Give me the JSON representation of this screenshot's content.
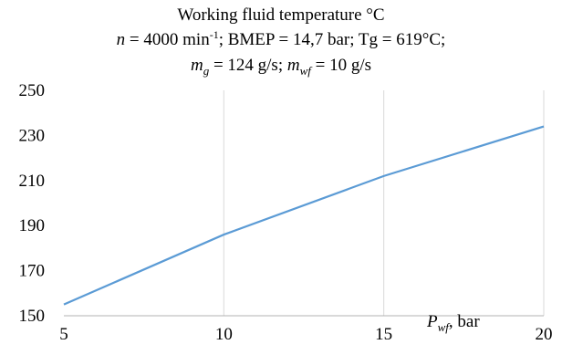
{
  "chart_data": {
    "type": "line",
    "title": "Working fluid temperature °C",
    "subtitle": {
      "n_var": "n",
      "n_eq": " = 4000 min",
      "n_exp": "-1",
      "rest": "; BMEP = 14,7 bar; Tg = 619°C;",
      "mg_var": "m",
      "mg_sub": "g",
      "mg_eq": " = 124 g/s; ",
      "mwf_var": "m",
      "mwf_sub": "wf",
      "mwf_eq": " = 10 g/s"
    },
    "xlabel": {
      "var": "P",
      "sub": "wf",
      "unit": ", bar"
    },
    "ylabel": "",
    "x": [
      5,
      10,
      15,
      20
    ],
    "y": [
      155,
      186,
      212,
      234
    ],
    "xlim": [
      5,
      20
    ],
    "ylim": [
      150,
      250
    ],
    "xticks": [
      "5",
      "10",
      "15",
      "20"
    ],
    "yticks": [
      "250",
      "230",
      "210",
      "190",
      "170",
      "150"
    ],
    "series_color": "#5b9bd5",
    "grid": "vertical",
    "legend": "none"
  }
}
